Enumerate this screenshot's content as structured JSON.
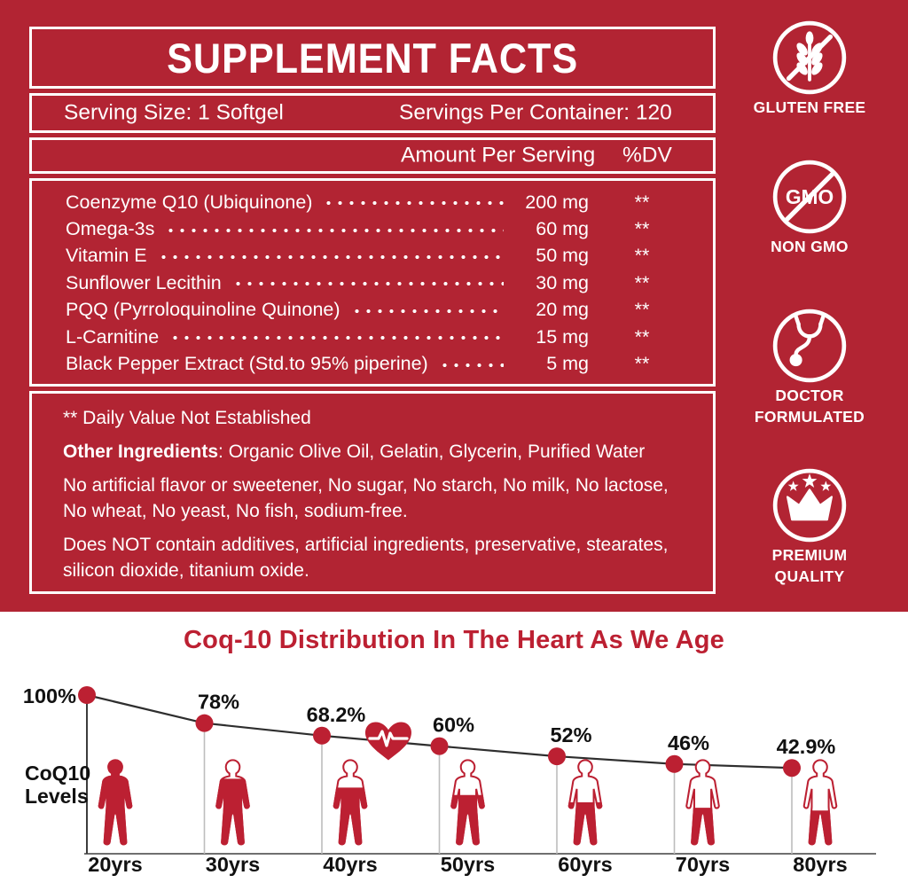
{
  "colors": {
    "panel_red": "#b22433",
    "accent_red": "#bc2032",
    "chart_line_color": "#2e2e2e",
    "chart_text_color": "#111111",
    "guide_gray": "#bdbdbd"
  },
  "supplement_facts": {
    "title": "SUPPLEMENT FACTS",
    "serving_size": "Serving Size: 1 Softgel",
    "servings_per_container": "Servings Per Container: 120",
    "amount_header": "Amount Per Serving",
    "dv_header": "%DV",
    "ingredients": [
      {
        "name": "Coenzyme Q10 (Ubiquinone)",
        "amount": "200 mg",
        "dv": "**"
      },
      {
        "name": "Omega-3s",
        "amount": "60 mg",
        "dv": "**"
      },
      {
        "name": "Vitamin E",
        "amount": "50 mg",
        "dv": "**"
      },
      {
        "name": "Sunflower Lecithin",
        "amount": "30 mg",
        "dv": "**"
      },
      {
        "name": "PQQ (Pyrroloquinoline Quinone)",
        "amount": "20 mg",
        "dv": "**"
      },
      {
        "name": "L-Carnitine",
        "amount": "15 mg",
        "dv": "**"
      },
      {
        "name": "Black Pepper Extract (Std.to 95% piperine)",
        "amount": "5 mg",
        "dv": "**"
      }
    ],
    "footnote": "** Daily Value Not Established",
    "other_ingredients_label": "Other Ingredients",
    "other_ingredients_rest": ": Organic Olive Oil, Gelatin, Glycerin, Purified Water",
    "no_artificial_note": "No artificial flavor or sweetener, No sugar, No starch, No milk, No lactose, No wheat, No yeast, No fish, sodium-free.",
    "does_not_contain_note": "Does NOT contain additives, artificial ingredients, preservative, stearates, silicon dioxide, titanium oxide."
  },
  "badges": [
    {
      "name": "gluten-free",
      "lines": [
        "GLUTEN FREE"
      ]
    },
    {
      "name": "non-gmo",
      "icon_text": "GMO",
      "lines": [
        "NON GMO"
      ]
    },
    {
      "name": "doctor-formulated",
      "lines": [
        "DOCTOR",
        "FORMULATED"
      ]
    },
    {
      "name": "premium-quality",
      "lines": [
        "PREMIUM",
        "QUALITY"
      ]
    }
  ],
  "chart_data": {
    "type": "line",
    "title": "Coq-10 Distribution In The Heart As We Age",
    "ylabel": "CoQ10 Levels",
    "x": [
      "20yrs",
      "30yrs",
      "40yrs",
      "50yrs",
      "60yrs",
      "70yrs",
      "80yrs"
    ],
    "values": [
      100,
      78,
      68.2,
      60,
      52,
      46,
      42.9
    ],
    "point_labels": [
      "100%",
      "78%",
      "68.2%",
      "60%",
      "52%",
      "46%",
      "42.9%"
    ],
    "ylim": [
      0,
      100
    ],
    "legend": "none",
    "grid": "vertical-guides-per-point",
    "annotations": [
      "heart icon with ECG pulse between 40yrs and 50yrs",
      "human silhouettes filled proportionally to CoQ10 level"
    ]
  }
}
